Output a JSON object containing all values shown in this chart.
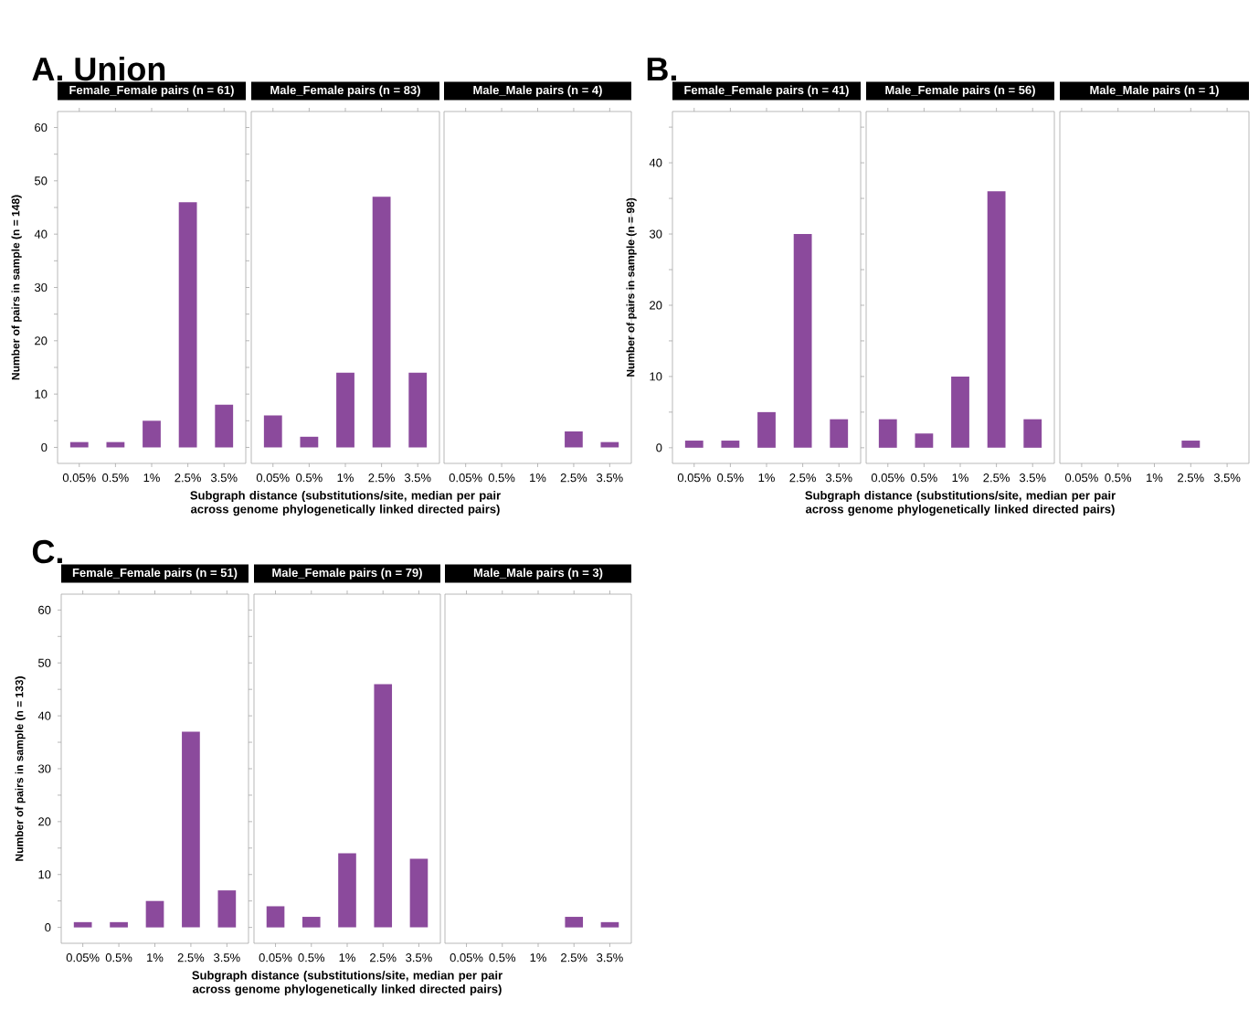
{
  "chart_data": [
    {
      "type": "bar",
      "title": "A. Union",
      "subtitle": "Female_Female pairs (n = 61)",
      "ylabel": "Number of pairs in sample (n = 148)",
      "categories": [
        "0.05%",
        "0.5%",
        "1%",
        "2.5%",
        "3.5%"
      ],
      "values": [
        1,
        1,
        5,
        46,
        8
      ],
      "color": "#8b4a9c",
      "ylim": [
        -3,
        63
      ],
      "yticks": [
        0,
        {
          "value": 5,
          "label": null
        },
        10,
        {
          "value": 15,
          "label": null
        },
        20,
        {
          "value": 25,
          "label": null
        },
        30,
        {
          "value": 35,
          "label": null
        },
        40,
        {
          "value": 45,
          "label": null
        },
        50,
        {
          "value": 55,
          "label": null
        },
        60
      ]
    },
    {
      "type": "bar",
      "subtitle": "Male_Female pairs (n = 83)",
      "xlabel": "Subgraph distance (substitutions/site, median per pair across genome phylogenetically linked directed pairs)",
      "categories": [
        "0.05%",
        "0.5%",
        "1%",
        "2.5%",
        "3.5%"
      ],
      "values": [
        6,
        2,
        14,
        47,
        14
      ],
      "color": "#8b4a9c",
      "ylim": [
        -3,
        63
      ],
      "tick_labels": "x"
    },
    {
      "type": "bar",
      "subtitle": "Male_Male pairs (n = 4)",
      "categories": [
        "0.05%",
        "0.5%",
        "1%",
        "2.5%",
        "3.5%"
      ],
      "values": [
        0,
        0,
        0,
        3,
        1
      ],
      "color": "#8b4a9c",
      "ylim": [
        -3,
        63
      ],
      "tick_labels": "x"
    },
    {
      "type": "bar",
      "title": "B.",
      "subtitle": "Female_Female pairs (n = 41)",
      "ylabel": "Number of pairs in sample (n = 98)",
      "categories": [
        "0.05%",
        "0.5%",
        "1%",
        "2.5%",
        "3.5%"
      ],
      "values": [
        1,
        1,
        5,
        30,
        4
      ],
      "color": "#8b4a9c",
      "ylim": [
        -2.2,
        47.2
      ],
      "yticks": [
        0,
        {
          "value": 5,
          "label": null
        },
        10,
        {
          "value": 15,
          "label": null
        },
        20,
        {
          "value": 25,
          "label": null
        },
        30,
        {
          "value": 35,
          "label": null
        },
        40,
        {
          "value": 45,
          "label": null
        }
      ]
    },
    {
      "type": "bar",
      "subtitle": "Male_Female pairs (n = 56)",
      "xlabel": "Subgraph distance (substitutions/site, median per pair across genome phylogenetically linked directed pairs)",
      "categories": [
        "0.05%",
        "0.5%",
        "1%",
        "2.5%",
        "3.5%"
      ],
      "values": [
        4,
        2,
        10,
        36,
        4
      ],
      "color": "#8b4a9c",
      "ylim": [
        -2.2,
        47.2
      ],
      "tick_labels": "x"
    },
    {
      "type": "bar",
      "subtitle": "Male_Male pairs (n = 1)",
      "categories": [
        "0.05%",
        "0.5%",
        "1%",
        "2.5%",
        "3.5%"
      ],
      "values": [
        0,
        0,
        0,
        1,
        0
      ],
      "color": "#8b4a9c",
      "ylim": [
        -2.2,
        47.2
      ],
      "tick_labels": "x"
    },
    {
      "type": "bar",
      "title": "C.",
      "subtitle": "Female_Female pairs (n = 51)",
      "ylabel": "Number of pairs in sample (n = 133)",
      "categories": [
        "0.05%",
        "0.5%",
        "1%",
        "2.5%",
        "3.5%"
      ],
      "values": [
        1,
        1,
        5,
        37,
        7
      ],
      "color": "#8b4a9c",
      "ylim": [
        -3,
        63
      ],
      "yticks": [
        0,
        {
          "value": 5,
          "label": null
        },
        10,
        {
          "value": 15,
          "label": null
        },
        20,
        {
          "value": 25,
          "label": null
        },
        30,
        {
          "value": 35,
          "label": null
        },
        40,
        {
          "value": 45,
          "label": null
        },
        50,
        {
          "value": 55,
          "label": null
        },
        60
      ]
    },
    {
      "type": "bar",
      "subtitle": "Male_Female pairs (n = 79)",
      "xlabel": "Subgraph distance (substitutions/site, median per pair across genome phylogenetically linked directed pairs)",
      "categories": [
        "0.05%",
        "0.5%",
        "1%",
        "2.5%",
        "3.5%"
      ],
      "values": [
        4,
        2,
        14,
        46,
        13
      ],
      "color": "#8b4a9c",
      "ylim": [
        -3,
        63
      ],
      "tick_labels": "x"
    },
    {
      "type": "bar",
      "subtitle": "Male_Male pairs (n = 3)",
      "categories": [
        "0.05%",
        "0.5%",
        "1%",
        "2.5%",
        "3.5%"
      ],
      "values": [
        0,
        0,
        0,
        2,
        1
      ],
      "color": "#8b4a9c",
      "ylim": [
        -3,
        63
      ],
      "tick_labels": "x"
    }
  ]
}
